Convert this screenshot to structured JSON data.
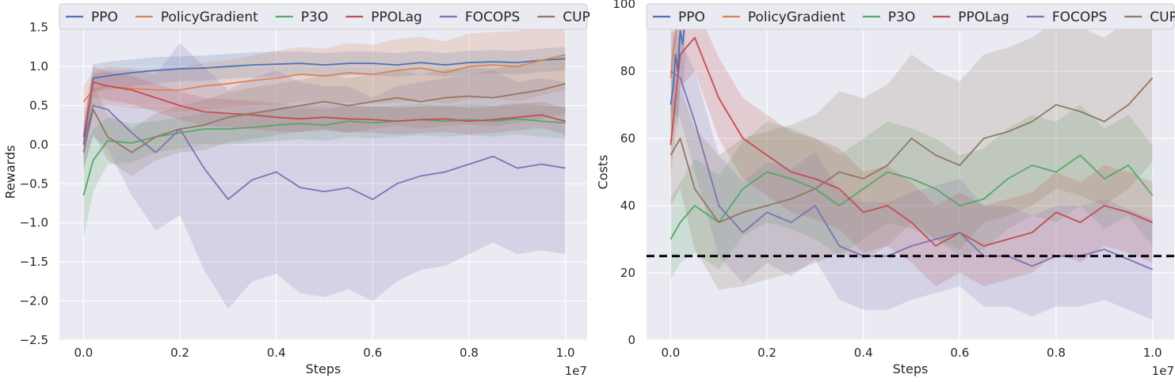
{
  "chart_data": [
    {
      "type": "line",
      "xlabel": "Steps",
      "ylabel": "Rewards",
      "x_offset_label": "1e7",
      "xlim": [
        -0.05,
        1.045
      ],
      "ylim": [
        -2.5,
        1.8
      ],
      "xticks": [
        0.0,
        0.2,
        0.4,
        0.6,
        0.8,
        1.0
      ],
      "xtick_labels": [
        "0.0",
        "0.2",
        "0.4",
        "0.6",
        "0.8",
        "1.0"
      ],
      "yticks": [
        -2.5,
        -2.0,
        -1.5,
        -1.0,
        -0.5,
        0.0,
        0.5,
        1.0,
        1.5
      ],
      "ytick_labels": [
        "−2.5",
        "−2.0",
        "−1.5",
        "−1.0",
        "−0.5",
        "0.0",
        "0.5",
        "1.0",
        "1.5"
      ],
      "legend_position": "top",
      "grid": true,
      "series": [
        {
          "name": "PPO",
          "color": "#4c72b0",
          "x": [
            0,
            0.02,
            0.05,
            0.1,
            0.15,
            0.2,
            0.25,
            0.3,
            0.35,
            0.4,
            0.45,
            0.5,
            0.55,
            0.6,
            0.65,
            0.7,
            0.75,
            0.8,
            0.85,
            0.9,
            0.95,
            1.0
          ],
          "y": [
            0.0,
            0.85,
            0.88,
            0.92,
            0.95,
            0.97,
            0.98,
            1.0,
            1.02,
            1.03,
            1.04,
            1.02,
            1.04,
            1.04,
            1.02,
            1.05,
            1.02,
            1.05,
            1.06,
            1.05,
            1.08,
            1.1
          ],
          "band": [
            0.2,
            0.18,
            0.18,
            0.17,
            0.17,
            0.16,
            0.16,
            0.16,
            0.16,
            0.16,
            0.15,
            0.15,
            0.15,
            0.15,
            0.15,
            0.15,
            0.15,
            0.15,
            0.15,
            0.15,
            0.15,
            0.15
          ]
        },
        {
          "name": "PolicyGradient",
          "color": "#dd8452",
          "x": [
            0,
            0.02,
            0.05,
            0.1,
            0.15,
            0.2,
            0.25,
            0.3,
            0.35,
            0.4,
            0.45,
            0.5,
            0.55,
            0.6,
            0.65,
            0.7,
            0.75,
            0.8,
            0.85,
            0.9,
            0.95,
            1.0
          ],
          "y": [
            0.55,
            0.7,
            0.75,
            0.72,
            0.7,
            0.7,
            0.75,
            0.78,
            0.82,
            0.85,
            0.9,
            0.88,
            0.92,
            0.9,
            0.95,
            0.98,
            0.92,
            1.0,
            1.02,
            1.0,
            1.08,
            1.15
          ],
          "band": [
            0.2,
            0.22,
            0.25,
            0.25,
            0.25,
            0.28,
            0.3,
            0.3,
            0.32,
            0.35,
            0.35,
            0.35,
            0.38,
            0.38,
            0.4,
            0.4,
            0.4,
            0.42,
            0.42,
            0.45,
            0.45,
            0.45
          ]
        },
        {
          "name": "P3O",
          "color": "#55a868",
          "x": [
            0,
            0.02,
            0.05,
            0.1,
            0.15,
            0.2,
            0.25,
            0.3,
            0.35,
            0.4,
            0.45,
            0.5,
            0.55,
            0.6,
            0.65,
            0.7,
            0.75,
            0.8,
            0.85,
            0.9,
            0.95,
            1.0
          ],
          "y": [
            -0.65,
            -0.2,
            0.05,
            0.02,
            0.1,
            0.15,
            0.2,
            0.2,
            0.22,
            0.25,
            0.27,
            0.25,
            0.3,
            0.28,
            0.3,
            0.32,
            0.3,
            0.32,
            0.3,
            0.33,
            0.3,
            0.28
          ],
          "band": [
            0.55,
            0.4,
            0.3,
            0.25,
            0.2,
            0.2,
            0.2,
            0.2,
            0.2,
            0.2,
            0.2,
            0.2,
            0.2,
            0.2,
            0.2,
            0.2,
            0.2,
            0.2,
            0.2,
            0.2,
            0.2,
            0.2
          ]
        },
        {
          "name": "PPOLag",
          "color": "#c44e52",
          "x": [
            0,
            0.02,
            0.05,
            0.1,
            0.15,
            0.2,
            0.25,
            0.3,
            0.35,
            0.4,
            0.45,
            0.5,
            0.55,
            0.6,
            0.65,
            0.7,
            0.75,
            0.8,
            0.85,
            0.9,
            0.95,
            1.0
          ],
          "y": [
            0.1,
            0.8,
            0.75,
            0.7,
            0.6,
            0.5,
            0.42,
            0.4,
            0.38,
            0.35,
            0.33,
            0.35,
            0.33,
            0.32,
            0.3,
            0.32,
            0.33,
            0.3,
            0.32,
            0.35,
            0.38,
            0.3
          ],
          "band": [
            0.2,
            0.2,
            0.18,
            0.18,
            0.18,
            0.18,
            0.18,
            0.18,
            0.18,
            0.18,
            0.17,
            0.17,
            0.17,
            0.17,
            0.17,
            0.17,
            0.17,
            0.17,
            0.17,
            0.17,
            0.17,
            0.17
          ]
        },
        {
          "name": "FOCOPS",
          "color": "#8172b3",
          "x": [
            0,
            0.02,
            0.05,
            0.1,
            0.15,
            0.2,
            0.25,
            0.3,
            0.35,
            0.4,
            0.45,
            0.5,
            0.55,
            0.6,
            0.65,
            0.7,
            0.75,
            0.8,
            0.85,
            0.9,
            0.95,
            1.0
          ],
          "y": [
            0.0,
            0.5,
            0.45,
            0.15,
            -0.1,
            0.2,
            -0.3,
            -0.7,
            -0.45,
            -0.35,
            -0.55,
            -0.6,
            -0.55,
            -0.7,
            -0.5,
            -0.4,
            -0.35,
            -0.25,
            -0.15,
            -0.3,
            -0.25,
            -0.3
          ],
          "band": [
            0.3,
            0.4,
            0.5,
            0.8,
            1.0,
            1.1,
            1.3,
            1.4,
            1.3,
            1.3,
            1.35,
            1.35,
            1.3,
            1.3,
            1.25,
            1.2,
            1.2,
            1.15,
            1.1,
            1.1,
            1.1,
            1.1
          ]
        },
        {
          "name": "CUP",
          "color": "#937860",
          "x": [
            0,
            0.02,
            0.05,
            0.1,
            0.15,
            0.2,
            0.25,
            0.3,
            0.35,
            0.4,
            0.45,
            0.5,
            0.55,
            0.6,
            0.65,
            0.7,
            0.75,
            0.8,
            0.85,
            0.9,
            0.95,
            1.0
          ],
          "y": [
            -0.1,
            0.45,
            0.1,
            -0.1,
            0.1,
            0.2,
            0.25,
            0.35,
            0.4,
            0.45,
            0.5,
            0.55,
            0.5,
            0.55,
            0.6,
            0.55,
            0.6,
            0.62,
            0.6,
            0.65,
            0.7,
            0.78
          ],
          "band": [
            0.25,
            0.3,
            0.3,
            0.3,
            0.3,
            0.3,
            0.32,
            0.32,
            0.33,
            0.33,
            0.33,
            0.35,
            0.35,
            0.35,
            0.35,
            0.35,
            0.36,
            0.36,
            0.37,
            0.37,
            0.38,
            0.38
          ]
        }
      ]
    },
    {
      "type": "line",
      "xlabel": "Steps",
      "ylabel": "Costs",
      "x_offset_label": "1e7",
      "xlim": [
        -0.05,
        1.045
      ],
      "ylim": [
        0,
        100
      ],
      "xticks": [
        0.0,
        0.2,
        0.4,
        0.6,
        0.8,
        1.0
      ],
      "xtick_labels": [
        "0.0",
        "0.2",
        "0.4",
        "0.6",
        "0.8",
        "1.0"
      ],
      "yticks": [
        0,
        20,
        40,
        60,
        80,
        100
      ],
      "ytick_labels": [
        "0",
        "20",
        "40",
        "60",
        "80",
        "100"
      ],
      "threshold": 25,
      "legend_position": "top",
      "grid": true,
      "series": [
        {
          "name": "PPO",
          "color": "#4c72b0",
          "x": [
            0,
            0.005,
            0.01,
            0.015,
            0.02,
            0.025,
            0.03
          ],
          "y": [
            70,
            75,
            85,
            80,
            92,
            88,
            95
          ],
          "band": [
            12,
            15,
            18,
            18,
            15,
            15,
            12
          ]
        },
        {
          "name": "PolicyGradient",
          "color": "#dd8452",
          "x": [
            0,
            0.005,
            0.01,
            0.015,
            0.02
          ],
          "y": [
            78,
            85,
            90,
            95,
            99
          ],
          "band": [
            15,
            15,
            15,
            12,
            10
          ]
        },
        {
          "name": "P3O",
          "color": "#55a868",
          "x": [
            0,
            0.02,
            0.05,
            0.1,
            0.15,
            0.2,
            0.25,
            0.3,
            0.35,
            0.4,
            0.45,
            0.5,
            0.55,
            0.6,
            0.65,
            0.7,
            0.75,
            0.8,
            0.85,
            0.9,
            0.95,
            1.0
          ],
          "y": [
            30,
            35,
            40,
            35,
            45,
            50,
            48,
            45,
            40,
            45,
            50,
            48,
            45,
            40,
            42,
            48,
            52,
            50,
            55,
            48,
            52,
            43
          ],
          "band": [
            12,
            12,
            14,
            14,
            14,
            15,
            15,
            15,
            15,
            15,
            15,
            15,
            15,
            15,
            15,
            15,
            15,
            15,
            15,
            15,
            15,
            15
          ]
        },
        {
          "name": "PPOLag",
          "color": "#c44e52",
          "x": [
            0,
            0.02,
            0.05,
            0.1,
            0.15,
            0.2,
            0.25,
            0.3,
            0.35,
            0.4,
            0.45,
            0.5,
            0.55,
            0.6,
            0.65,
            0.7,
            0.75,
            0.8,
            0.85,
            0.9,
            0.95,
            1.0
          ],
          "y": [
            58,
            85,
            90,
            72,
            60,
            55,
            50,
            48,
            45,
            38,
            40,
            35,
            28,
            32,
            28,
            30,
            32,
            38,
            35,
            40,
            38,
            35
          ],
          "band": [
            10,
            10,
            10,
            12,
            12,
            12,
            12,
            12,
            12,
            12,
            12,
            12,
            12,
            12,
            12,
            12,
            12,
            12,
            12,
            12,
            12,
            12
          ]
        },
        {
          "name": "FOCOPS",
          "color": "#8172b3",
          "x": [
            0,
            0.02,
            0.05,
            0.1,
            0.15,
            0.2,
            0.25,
            0.3,
            0.35,
            0.4,
            0.45,
            0.5,
            0.55,
            0.6,
            0.65,
            0.7,
            0.75,
            0.8,
            0.85,
            0.9,
            0.95,
            1.0
          ],
          "y": [
            80,
            78,
            65,
            40,
            32,
            38,
            35,
            40,
            28,
            25,
            25,
            28,
            30,
            32,
            25,
            25,
            22,
            25,
            25,
            27,
            24,
            21
          ],
          "band": [
            12,
            12,
            15,
            15,
            15,
            15,
            16,
            16,
            16,
            16,
            16,
            16,
            16,
            16,
            15,
            15,
            15,
            15,
            15,
            15,
            15,
            15
          ]
        },
        {
          "name": "CUP",
          "color": "#937860",
          "x": [
            0,
            0.02,
            0.05,
            0.1,
            0.15,
            0.2,
            0.25,
            0.3,
            0.35,
            0.4,
            0.45,
            0.5,
            0.55,
            0.6,
            0.65,
            0.7,
            0.75,
            0.8,
            0.85,
            0.9,
            0.95,
            1.0
          ],
          "y": [
            55,
            60,
            45,
            35,
            38,
            40,
            42,
            45,
            50,
            48,
            52,
            60,
            55,
            52,
            60,
            62,
            65,
            70,
            68,
            65,
            70,
            78
          ],
          "band": [
            15,
            15,
            18,
            20,
            22,
            22,
            22,
            22,
            24,
            24,
            24,
            25,
            25,
            25,
            25,
            25,
            25,
            25,
            25,
            25,
            25,
            25
          ]
        }
      ]
    }
  ]
}
